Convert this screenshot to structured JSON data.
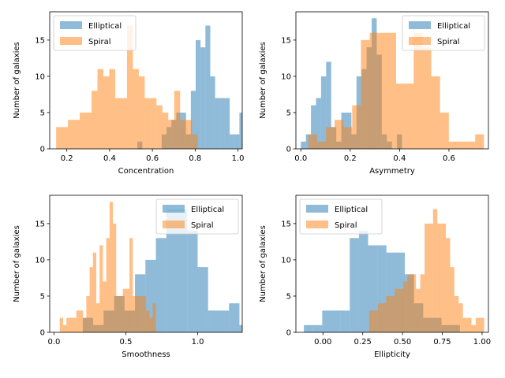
{
  "chart_data": [
    {
      "type": "histogram",
      "xlabel": "Concentration",
      "ylabel": "Number of galaxies",
      "xlim": [
        0.12,
        1.02
      ],
      "ylim": [
        0,
        18.9
      ],
      "xticks": [
        0.2,
        0.4,
        0.6,
        0.8,
        1.0
      ],
      "xtick_labels": [
        "0.2",
        "0.4",
        "0.6",
        "0.8",
        "1.0"
      ],
      "yticks": [
        0,
        5,
        10,
        15
      ],
      "ytick_labels": [
        "0",
        "5",
        "10",
        "15"
      ],
      "legend": "upper left",
      "series": [
        {
          "name": "Elliptical",
          "color": "#1f77b4",
          "alpha": 0.5,
          "bin_start": 0.53,
          "bin_width": 0.0227,
          "counts": [
            1,
            0,
            0,
            0,
            0,
            2,
            3,
            4,
            5,
            5,
            2,
            8,
            15,
            14,
            17,
            10,
            7,
            7,
            7,
            2,
            2,
            5,
            3
          ]
        },
        {
          "name": "Spiral",
          "color": "#ff7f0e",
          "alpha": 0.5,
          "bin_start": 0.15,
          "bin_width": 0.0276,
          "counts": [
            3,
            3,
            4,
            4,
            5,
            5,
            8,
            11,
            10,
            11,
            7,
            7,
            17,
            11,
            10,
            7,
            7,
            6,
            5,
            4,
            8,
            4,
            4,
            2
          ]
        }
      ]
    },
    {
      "type": "histogram",
      "xlabel": "Asymmetry",
      "ylabel": "Number of galaxies",
      "xlim": [
        -0.02,
        0.76
      ],
      "ylim": [
        0,
        18.9
      ],
      "xticks": [
        0.0,
        0.2,
        0.4,
        0.6
      ],
      "xtick_labels": [
        "0.0",
        "0.2",
        "0.4",
        "0.6"
      ],
      "yticks": [
        0,
        5,
        10,
        15
      ],
      "ytick_labels": [
        "0",
        "5",
        "10",
        "15"
      ],
      "legend": "upper right",
      "series": [
        {
          "name": "Elliptical",
          "color": "#1f77b4",
          "alpha": 0.5,
          "bin_start": 0.0,
          "bin_width": 0.0205,
          "counts": [
            1,
            2,
            6,
            7,
            10,
            12,
            3,
            1,
            5,
            5,
            2,
            10,
            11,
            14,
            18,
            13,
            2,
            1,
            0,
            2,
            0,
            0,
            0
          ]
        },
        {
          "name": "Spiral",
          "color": "#ff7f0e",
          "alpha": 0.5,
          "bin_start": 0.03,
          "bin_width": 0.0356,
          "counts": [
            2,
            1,
            3,
            4,
            3,
            6,
            15,
            16,
            16,
            16,
            9,
            9,
            16,
            14,
            10,
            5,
            1,
            1,
            1,
            2
          ]
        }
      ]
    },
    {
      "type": "histogram",
      "xlabel": "Smoothness",
      "ylabel": "Number of galaxies",
      "xlim": [
        -0.03,
        1.31
      ],
      "ylim": [
        0,
        18.9
      ],
      "xticks": [
        0.0,
        0.5,
        1.0
      ],
      "xtick_labels": [
        "0.0",
        "0.5",
        "1.0"
      ],
      "yticks": [
        0,
        5,
        10,
        15
      ],
      "ytick_labels": [
        "0",
        "5",
        "10",
        "15"
      ],
      "legend": "upper right",
      "series": [
        {
          "name": "Elliptical",
          "color": "#1f77b4",
          "alpha": 0.5,
          "bin_start": 0.2,
          "bin_width": 0.0727,
          "counts": [
            2,
            1,
            3,
            5,
            3,
            8,
            10,
            13,
            17,
            17,
            14,
            9,
            3,
            3,
            4,
            1,
            0,
            0,
            0,
            0,
            0,
            1
          ]
        },
        {
          "name": "Spiral",
          "color": "#ff7f0e",
          "alpha": 0.5,
          "bin_start": 0.04,
          "bin_width": 0.0231,
          "counts": [
            2,
            1,
            2,
            2,
            2,
            3,
            3,
            2,
            5,
            9,
            11,
            4,
            12,
            7,
            13,
            18,
            15,
            5,
            5,
            6,
            6,
            13,
            5,
            5,
            5,
            5,
            3,
            2,
            4
          ]
        }
      ]
    },
    {
      "type": "histogram",
      "xlabel": "Ellipticity",
      "ylabel": "Number of galaxies",
      "xlim": [
        -0.17,
        1.04
      ],
      "ylim": [
        0,
        18.9
      ],
      "xticks": [
        0.0,
        0.25,
        0.5,
        0.75,
        1.0
      ],
      "xtick_labels": [
        "0.00",
        "0.25",
        "0.50",
        "0.75",
        "1.00"
      ],
      "yticks": [
        0,
        5,
        10,
        15
      ],
      "ytick_labels": [
        "0",
        "5",
        "10",
        "15"
      ],
      "legend": "upper left",
      "series": [
        {
          "name": "Elliptical",
          "color": "#1f77b4",
          "alpha": 0.5,
          "bin_start": -0.12,
          "bin_width": 0.0577,
          "counts": [
            1,
            1,
            3,
            3,
            3,
            13,
            14,
            12,
            12,
            11,
            11,
            8,
            4,
            2,
            2,
            1,
            1
          ]
        },
        {
          "name": "Spiral",
          "color": "#ff7f0e",
          "alpha": 0.5,
          "bin_start": 0.29,
          "bin_width": 0.0268,
          "counts": [
            3,
            3,
            4,
            4,
            5,
            5,
            6,
            6,
            7,
            8,
            8,
            6,
            8,
            15,
            15,
            17,
            15,
            15,
            13,
            9,
            5,
            4,
            2,
            2,
            1,
            2,
            2
          ]
        }
      ]
    }
  ]
}
